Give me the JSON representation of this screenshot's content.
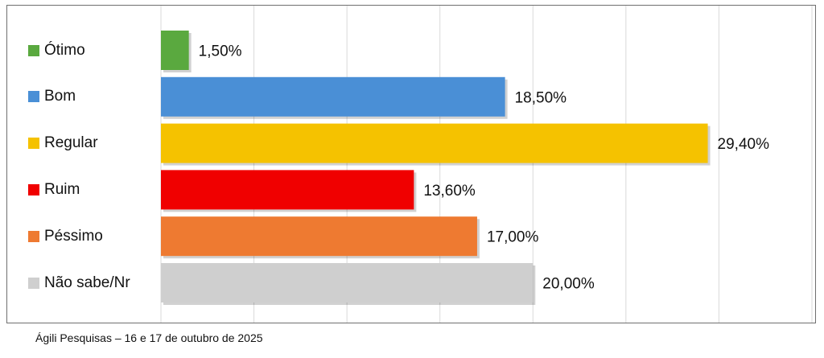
{
  "chart_data": {
    "type": "bar",
    "orientation": "horizontal",
    "categories": [
      "Ótimo",
      "Bom",
      "Regular",
      "Ruim",
      "Péssimo",
      "Não sabe/Nr"
    ],
    "values": [
      1.5,
      18.5,
      29.4,
      13.6,
      17.0,
      20.0
    ],
    "value_labels": [
      "1,50%",
      "18,50%",
      "29,40%",
      "13,60%",
      "17,00%",
      "20,00%"
    ],
    "colors": [
      "#5aa93f",
      "#4a8fd6",
      "#f5c200",
      "#f00000",
      "#ee7a31",
      "#cfcfcf"
    ],
    "title": "",
    "xlabel": "",
    "ylabel": "",
    "xlim": [
      0,
      35
    ],
    "grid": true,
    "legend_position": "left"
  },
  "source_note": "Ágili Pesquisas – 16 e 17 de outubro de 2025"
}
